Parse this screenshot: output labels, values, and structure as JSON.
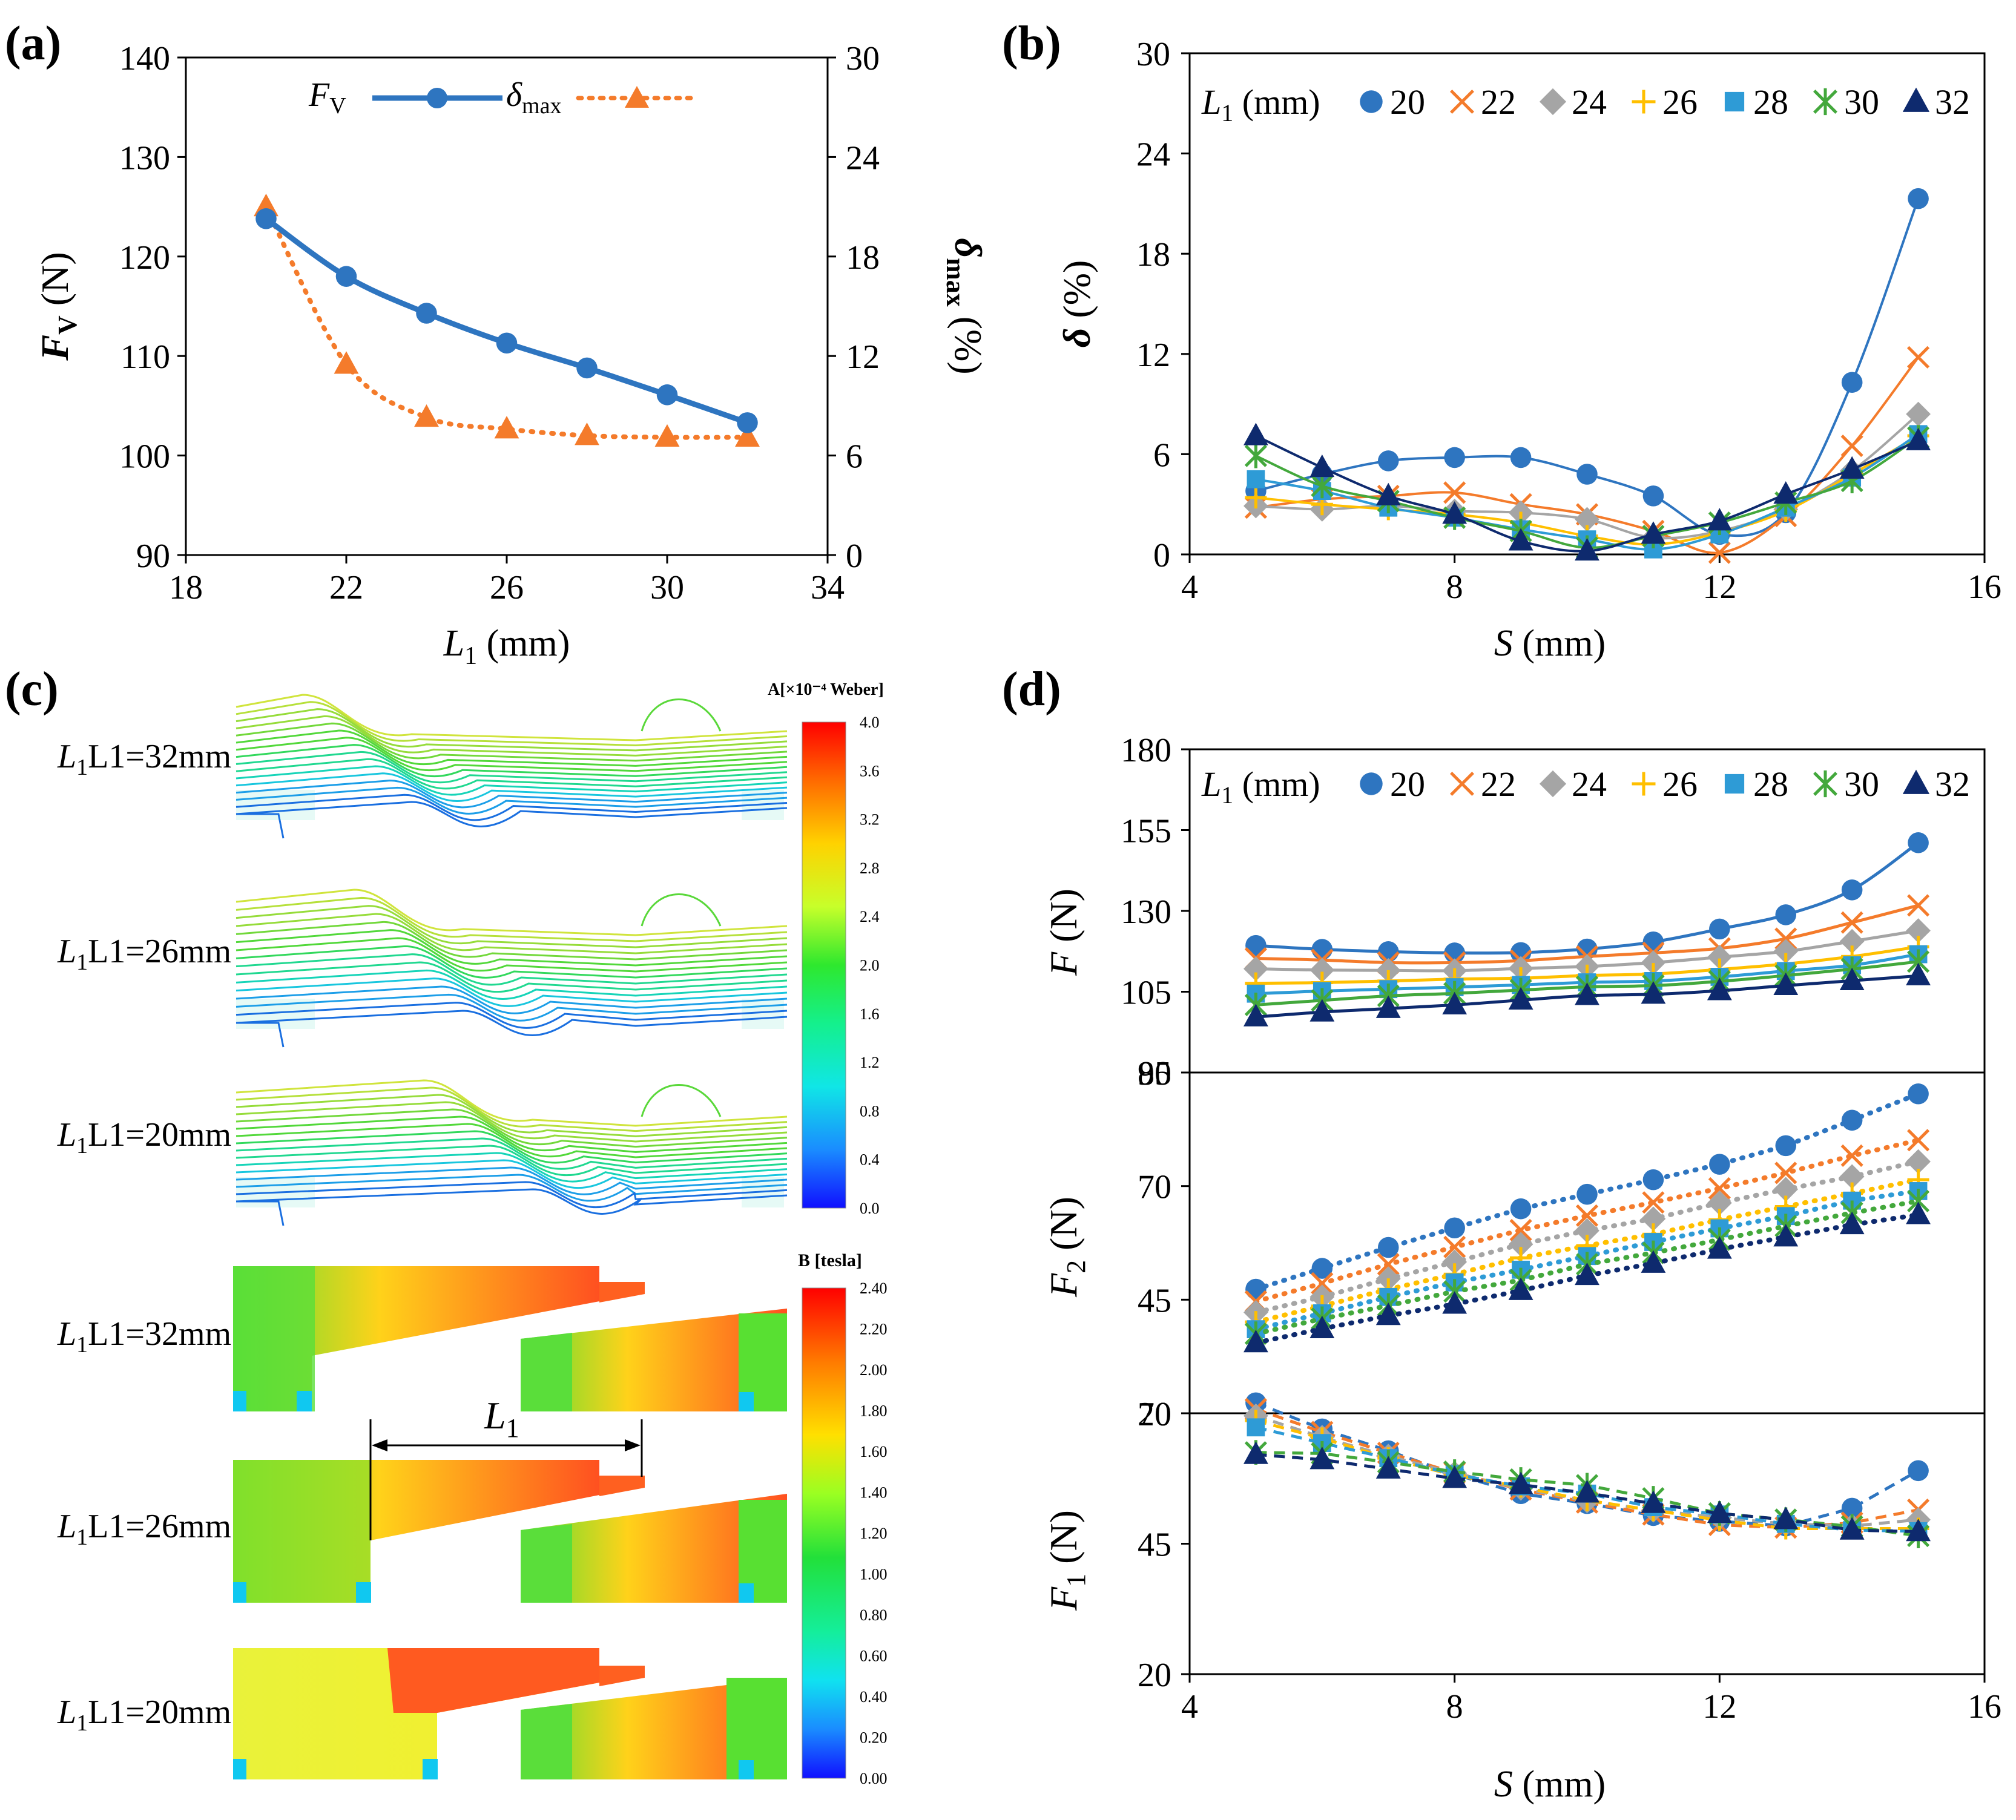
{
  "panels": {
    "a": {
      "label": "(a)"
    },
    "b": {
      "label": "(b)"
    },
    "c": {
      "label": "(c)"
    },
    "d": {
      "label": "(d)"
    }
  },
  "colors": {
    "blue": "#2E75C0",
    "orange": "#F47B2B",
    "gray": "#A5A5A5",
    "yellow": "#FFBF00",
    "lightblue": "#2E9BD6",
    "green": "#43A83C",
    "navy": "#0E2A6E"
  },
  "legend_series": [
    {
      "name": "20",
      "color": "#2E75C0",
      "marker": "circle"
    },
    {
      "name": "22",
      "color": "#F47B2B",
      "marker": "x"
    },
    {
      "name": "24",
      "color": "#A5A5A5",
      "marker": "diamond"
    },
    {
      "name": "26",
      "color": "#FFBF00",
      "marker": "plus"
    },
    {
      "name": "28",
      "color": "#2E9BD6",
      "marker": "square"
    },
    {
      "name": "30",
      "color": "#43A83C",
      "marker": "star"
    },
    {
      "name": "32",
      "color": "#0E2A6E",
      "marker": "triangle"
    }
  ],
  "chart_data": [
    {
      "id": "a",
      "type": "line",
      "title": "",
      "xlabel": "L1 (mm)",
      "ylabel": "FV (N)",
      "y2label": "δmax (%)",
      "xlim": [
        18,
        34
      ],
      "xticks": [
        "18",
        "22",
        "26",
        "30",
        "34"
      ],
      "ylim": [
        90,
        140
      ],
      "yticks": [
        "90",
        "100",
        "110",
        "120",
        "130",
        "140"
      ],
      "y2lim": [
        0,
        30
      ],
      "y2ticks": [
        "0",
        "6",
        "12",
        "18",
        "24",
        "30"
      ],
      "legend": [
        "FV",
        "δmax"
      ],
      "x": [
        20,
        22,
        24,
        26,
        28,
        30,
        32
      ],
      "series": [
        {
          "name": "FV",
          "axis": "left",
          "values": [
            123.8,
            118.0,
            114.3,
            111.3,
            108.8,
            106.1,
            103.3
          ]
        },
        {
          "name": "δmax",
          "axis": "right",
          "values": [
            21.0,
            11.5,
            8.3,
            7.6,
            7.2,
            7.1,
            7.1
          ]
        }
      ]
    },
    {
      "id": "b",
      "type": "line",
      "xlabel": "S (mm)",
      "ylabel": "δ (%)",
      "legend_title": "L1 (mm)",
      "xlim": [
        4,
        16
      ],
      "xticks": [
        "4",
        "8",
        "12",
        "16"
      ],
      "ylim": [
        0,
        30
      ],
      "yticks": [
        "0",
        "6",
        "12",
        "18",
        "24",
        "30"
      ],
      "x": [
        5,
        6,
        7,
        8,
        9,
        10,
        11,
        12,
        13,
        14,
        15
      ],
      "series": [
        {
          "name": "20",
          "values": [
            3.8,
            4.8,
            5.6,
            5.8,
            5.8,
            4.8,
            3.5,
            1.2,
            2.5,
            10.3,
            21.3
          ]
        },
        {
          "name": "22",
          "values": [
            2.8,
            3.3,
            3.5,
            3.7,
            3.0,
            2.4,
            1.4,
            0.1,
            2.3,
            6.5,
            11.8
          ]
        },
        {
          "name": "24",
          "values": [
            2.9,
            2.7,
            2.9,
            2.6,
            2.5,
            2.1,
            1.0,
            1.4,
            2.7,
            5.0,
            8.4
          ]
        },
        {
          "name": "26",
          "values": [
            3.4,
            3.0,
            2.7,
            2.4,
            1.9,
            1.1,
            0.6,
            1.3,
            2.6,
            4.8,
            7.1
          ]
        },
        {
          "name": "28",
          "values": [
            4.5,
            3.8,
            2.8,
            2.2,
            1.5,
            0.9,
            0.3,
            1.2,
            2.8,
            4.6,
            7.2
          ]
        },
        {
          "name": "30",
          "values": [
            5.9,
            4.1,
            3.2,
            2.2,
            1.4,
            0.4,
            1.1,
            1.9,
            3.1,
            4.4,
            7.0
          ]
        },
        {
          "name": "32",
          "values": [
            7.1,
            5.2,
            3.5,
            2.4,
            0.8,
            0.2,
            1.2,
            2.0,
            3.6,
            5.1,
            6.8
          ]
        }
      ]
    },
    {
      "id": "d-top",
      "type": "line",
      "ylabel": "F (N)",
      "legend_title": "L1 (mm)",
      "xlim": [
        4,
        16
      ],
      "ylim": [
        80,
        180
      ],
      "yticks": [
        "80",
        "105",
        "130",
        "155",
        "180"
      ],
      "x": [
        5,
        6,
        7,
        8,
        9,
        10,
        11,
        12,
        13,
        14,
        15
      ],
      "series": [
        {
          "name": "20",
          "values": [
            119.3,
            118.1,
            117.4,
            117.0,
            117.1,
            118.2,
            120.4,
            124.4,
            128.8,
            136.5,
            151.1
          ]
        },
        {
          "name": "22",
          "values": [
            115.3,
            114.8,
            114.0,
            114.0,
            114.6,
            115.9,
            117.0,
            118.4,
            121.4,
            126.4,
            131.7
          ]
        },
        {
          "name": "24",
          "values": [
            112.1,
            111.7,
            111.6,
            111.5,
            112.2,
            112.8,
            114.0,
            115.7,
            117.5,
            120.6,
            123.9
          ]
        },
        {
          "name": "26",
          "values": [
            107.6,
            107.8,
            108.3,
            108.9,
            109.2,
            110.0,
            110.5,
            111.9,
            113.6,
            115.9,
            118.9
          ]
        },
        {
          "name": "28",
          "values": [
            104.4,
            105.2,
            105.8,
            106.4,
            107.1,
            107.9,
            108.3,
            109.6,
            111.4,
            113.2,
            116.6
          ]
        },
        {
          "name": "30",
          "values": [
            100.9,
            102.3,
            103.7,
            104.5,
            105.5,
            106.5,
            106.9,
            108.2,
            110.0,
            112.0,
            114.3
          ]
        },
        {
          "name": "32",
          "values": [
            97.2,
            98.7,
            99.8,
            100.9,
            102.4,
            103.8,
            104.2,
            105.3,
            106.9,
            108.4,
            109.9
          ]
        }
      ]
    },
    {
      "id": "d-mid",
      "type": "line",
      "ylabel": "F2 (N)",
      "xlim": [
        4,
        16
      ],
      "ylim": [
        20,
        95
      ],
      "yticks": [
        "20",
        "45",
        "70",
        "95"
      ],
      "x": [
        5,
        6,
        7,
        8,
        9,
        10,
        11,
        12,
        13,
        14,
        15
      ],
      "series": [
        {
          "name": "20",
          "values": [
            47.3,
            51.9,
            56.5,
            60.8,
            65.0,
            68.2,
            71.4,
            74.8,
            78.9,
            84.5,
            90.3
          ]
        },
        {
          "name": "22",
          "values": [
            44.6,
            48.6,
            52.8,
            56.6,
            60.3,
            63.5,
            66.4,
            69.5,
            72.9,
            76.7,
            80.1
          ]
        },
        {
          "name": "24",
          "values": [
            42.2,
            45.6,
            49.6,
            53.3,
            57.2,
            60.2,
            62.8,
            66.3,
            69.3,
            72.1,
            75.4
          ]
        },
        {
          "name": "26",
          "values": [
            40.1,
            43.6,
            47.3,
            50.6,
            54.2,
            56.9,
            59.4,
            62.6,
            65.5,
            68.4,
            71.4
          ]
        },
        {
          "name": "28",
          "values": [
            38.5,
            42.0,
            45.6,
            48.8,
            51.6,
            54.6,
            57.7,
            60.7,
            63.4,
            66.8,
            68.9
          ]
        },
        {
          "name": "30",
          "values": [
            37.5,
            40.8,
            43.7,
            46.8,
            49.3,
            52.8,
            55.3,
            58.2,
            61.2,
            64.1,
            66.7
          ]
        },
        {
          "name": "32",
          "values": [
            35.5,
            38.6,
            41.5,
            44.0,
            47.0,
            50.3,
            53.0,
            56.1,
            58.8,
            61.5,
            63.7
          ]
        }
      ]
    },
    {
      "id": "d-bottom",
      "type": "line",
      "ylabel": "F1 (N)",
      "xlabel": "S (mm)",
      "xlim": [
        4,
        16
      ],
      "xticks": [
        "4",
        "8",
        "12",
        "16"
      ],
      "ylim": [
        20,
        70
      ],
      "yticks": [
        "20",
        "45",
        "70"
      ],
      "x": [
        5,
        6,
        7,
        8,
        9,
        10,
        11,
        12,
        13,
        14,
        15
      ],
      "series": [
        {
          "name": "20",
          "values": [
            72.0,
            67.0,
            62.8,
            58.3,
            54.6,
            52.7,
            50.4,
            49.3,
            48.4,
            51.8,
            59.0
          ]
        },
        {
          "name": "22",
          "values": [
            70.8,
            66.4,
            62.4,
            58.6,
            55.4,
            52.9,
            50.6,
            48.6,
            48.1,
            49.0,
            51.5
          ]
        },
        {
          "name": "24",
          "values": [
            69.5,
            65.4,
            61.8,
            58.5,
            55.6,
            53.2,
            51.4,
            50.0,
            48.8,
            48.4,
            49.6
          ]
        },
        {
          "name": "26",
          "values": [
            68.6,
            65.2,
            61.4,
            58.1,
            55.9,
            53.3,
            51.4,
            49.5,
            47.9,
            47.9,
            47.9
          ]
        },
        {
          "name": "28",
          "values": [
            67.3,
            64.3,
            61.4,
            58.3,
            56.0,
            54.6,
            52.0,
            50.6,
            48.8,
            47.6,
            47.4
          ]
        },
        {
          "name": "30",
          "values": [
            62.5,
            62.3,
            60.6,
            58.8,
            57.3,
            56.2,
            53.7,
            50.8,
            49.6,
            48.3,
            46.5
          ]
        },
        {
          "name": "32",
          "values": [
            62.1,
            61.1,
            59.3,
            57.5,
            56.3,
            54.7,
            52.7,
            50.8,
            49.6,
            47.6,
            47.3
          ]
        }
      ]
    }
  ],
  "panel_c": {
    "flux_rows": [
      "L1=32mm",
      "L1=26mm",
      "L1=20mm"
    ],
    "flux_colorbar": {
      "title": "A[×10⁻⁴ Weber]",
      "ticks": [
        "4.0",
        "3.6",
        "3.2",
        "2.8",
        "2.4",
        "2.0",
        "1.6",
        "1.2",
        "0.8",
        "0.4",
        "0.0"
      ]
    },
    "b_rows": [
      "L1=32mm",
      "L1=26mm",
      "L1=20mm"
    ],
    "b_colorbar": {
      "title": "B [tesla]",
      "ticks": [
        "2.40",
        "2.20",
        "2.00",
        "1.80",
        "1.60",
        "1.40",
        "1.20",
        "1.00",
        "0.80",
        "0.60",
        "0.40",
        "0.20",
        "0.00"
      ]
    },
    "dimension_label": "L1"
  },
  "axis_labels": {
    "a_x": "L",
    "a_x_sub": "1",
    "a_x_unit": " (mm)",
    "a_y": "F",
    "a_y_sub": "V",
    "a_y_unit": " (N)",
    "a_y2": "δ",
    "a_y2_sub": "max",
    "a_y2_unit": " (%)",
    "a_leg1": "F",
    "a_leg1_sub": "V",
    "a_leg2": "δ",
    "a_leg2_sub": "max",
    "b_x": "S",
    "b_x_unit": " (mm)",
    "b_y": "δ",
    "b_y_unit": " (%)",
    "leg_title": "L",
    "leg_title_sub": "1",
    "leg_title_unit": " (mm)",
    "d_top_y": "F",
    "d_top_y_unit": " (N)",
    "d_mid_y": "F",
    "d_mid_y_sub": "2",
    "d_mid_y_unit": " (N)",
    "d_bot_y": "F",
    "d_bot_y_sub": "1",
    "d_bot_y_unit": " (N)",
    "d_x": "S",
    "d_x_unit": " (mm)",
    "c_row_prefix": "L",
    "c_row_sub": "1"
  }
}
